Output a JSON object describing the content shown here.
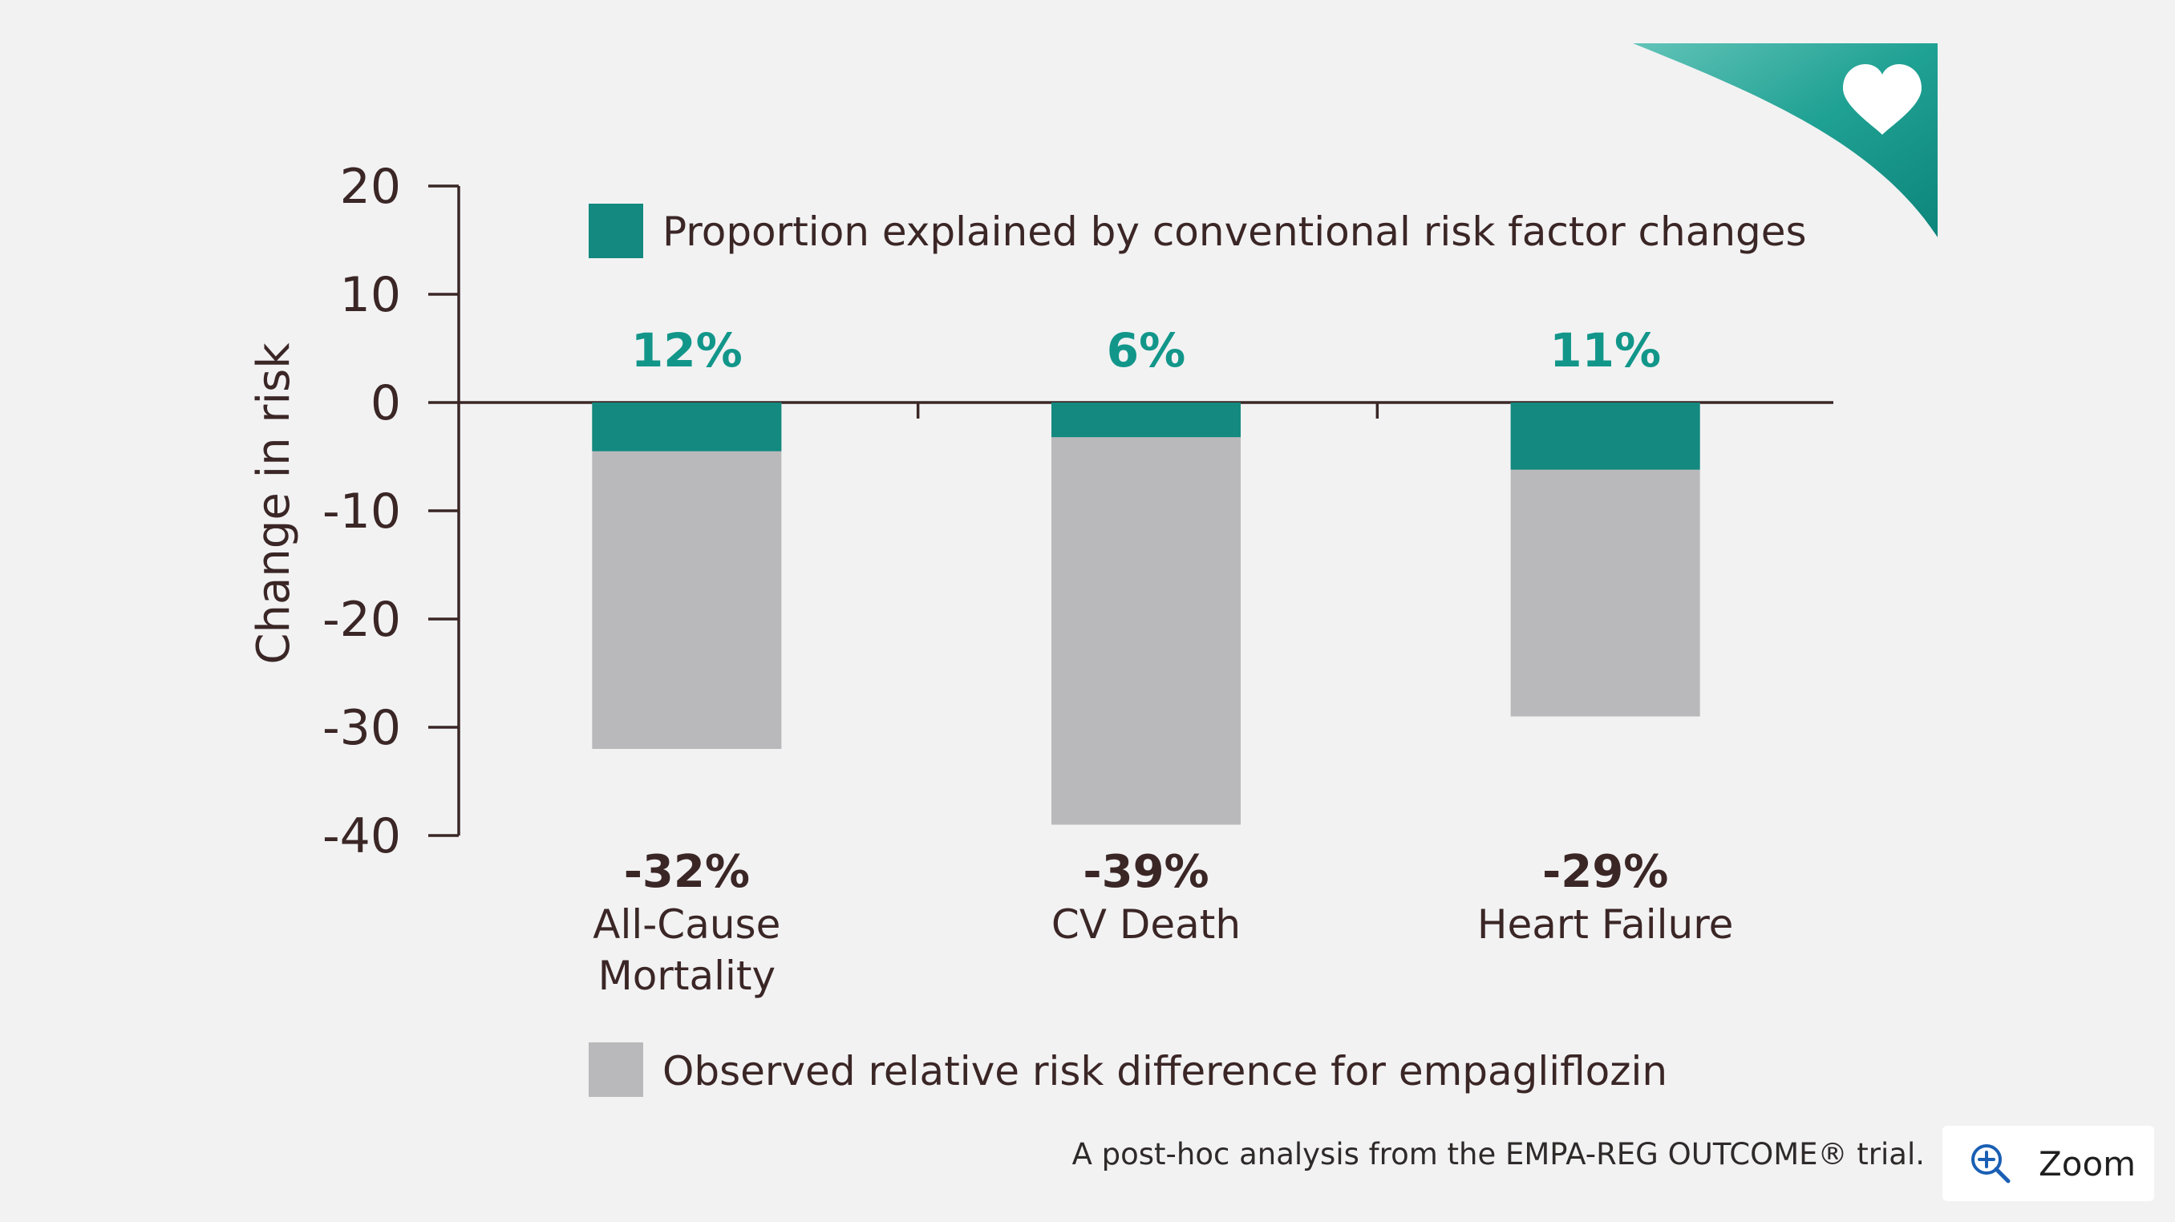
{
  "chart_data": {
    "type": "bar",
    "stacked": true,
    "ylabel": "Change in risk",
    "ylim": [
      -40,
      20
    ],
    "yticks": [
      20,
      10,
      0,
      -10,
      -20,
      -30,
      -40
    ],
    "yticks_labels": [
      "20",
      "10",
      "0",
      "-10",
      "-20",
      "-30",
      "-40"
    ],
    "categories": [
      "All-Cause Mortality",
      "CV Death",
      "Heart Failure"
    ],
    "category_lines": [
      [
        "All-Cause",
        "Mortality"
      ],
      [
        "CV Death"
      ],
      [
        "Heart Failure"
      ]
    ],
    "series": [
      {
        "name": "Proportion explained by conventional risk factor changes",
        "color": "#13897f",
        "values": [
          -4.5,
          -3.2,
          -6.2
        ],
        "labels": [
          "12%",
          "6%",
          "11%"
        ]
      },
      {
        "name": "Observed relative risk difference for empagliflozin",
        "color": "#b9b9bb",
        "values": [
          -32,
          -39,
          -29
        ],
        "labels": [
          "-32%",
          "-39%",
          "-29%"
        ]
      }
    ],
    "legend": {
      "top": "Proportion explained by conventional risk factor changes",
      "bottom": "Observed relative risk difference for empagliflozin"
    },
    "label_color": "#12968a",
    "axis_color": "#3b2626"
  },
  "footnote": "A post-hoc analysis from the EMPA-REG OUTCOME® trial.",
  "zoom": {
    "label": "Zoom",
    "icon": "zoom-in-icon"
  },
  "decoration": {
    "icon": "heart-icon",
    "color": "#1a9d90"
  }
}
